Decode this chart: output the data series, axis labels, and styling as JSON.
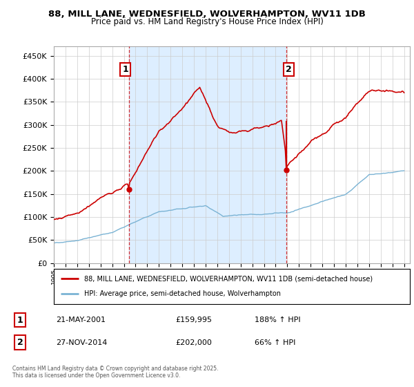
{
  "title_line1": "88, MILL LANE, WEDNESFIELD, WOLVERHAMPTON, WV11 1DB",
  "title_line2": "Price paid vs. HM Land Registry's House Price Index (HPI)",
  "legend_label1": "88, MILL LANE, WEDNESFIELD, WOLVERHAMPTON, WV11 1DB (semi-detached house)",
  "legend_label2": "HPI: Average price, semi-detached house, Wolverhampton",
  "property_color": "#cc0000",
  "hpi_color": "#7ab3d4",
  "purchase1_date": "21-MAY-2001",
  "purchase1_price": 159995,
  "purchase1_label": "188% ↑ HPI",
  "purchase2_date": "27-NOV-2014",
  "purchase2_price": 202000,
  "purchase2_label": "66% ↑ HPI",
  "footer": "Contains HM Land Registry data © Crown copyright and database right 2025.\nThis data is licensed under the Open Government Licence v3.0.",
  "ylim": [
    0,
    470000
  ],
  "yticks": [
    0,
    50000,
    100000,
    150000,
    200000,
    250000,
    300000,
    350000,
    400000,
    450000
  ],
  "background_color": "#ffffff",
  "grid_color": "#cccccc",
  "fill_color": "#ddeeff",
  "purchase1_year": 2001.38,
  "purchase2_year": 2014.9
}
